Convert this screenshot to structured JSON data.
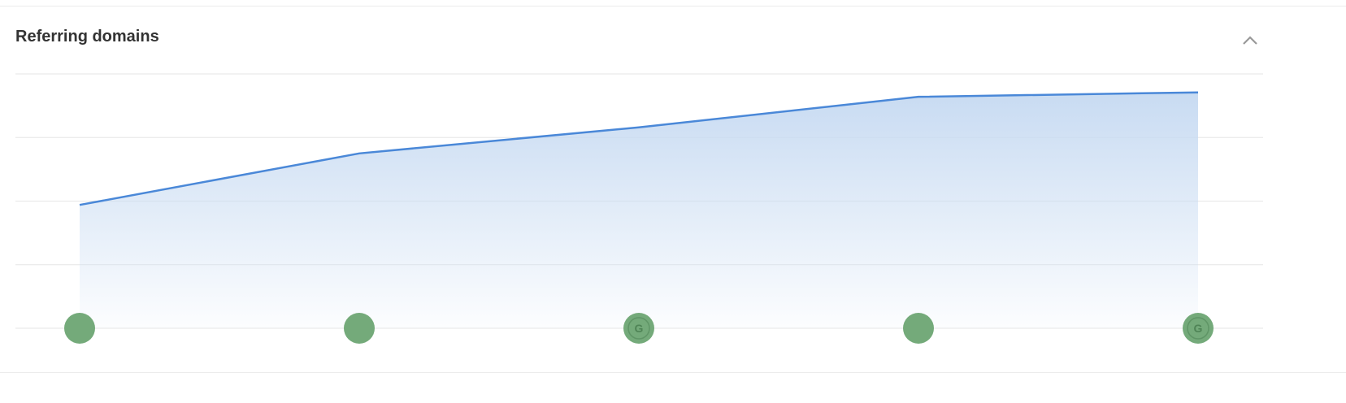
{
  "panel": {
    "title": "Referring domains",
    "collapse_icon": "chevron-up-icon"
  },
  "chart_data": {
    "type": "area",
    "title": "Referring domains",
    "x": [
      1,
      2,
      3,
      4,
      5
    ],
    "values": [
      1.94,
      2.75,
      3.16,
      3.64,
      3.71
    ],
    "ylim": [
      0,
      4
    ],
    "grid": true,
    "legend": "none",
    "line_color": "#4a88d8",
    "fill_color": "#c8dbf2",
    "markers": [
      {
        "icon": "event-dot-icon",
        "label": ""
      },
      {
        "icon": "event-dot-icon",
        "label": ""
      },
      {
        "icon": "google-update-icon",
        "label": "G"
      },
      {
        "icon": "event-dot-icon",
        "label": ""
      },
      {
        "icon": "google-update-icon",
        "label": "G"
      }
    ],
    "marker_color": "#74aa7a"
  }
}
